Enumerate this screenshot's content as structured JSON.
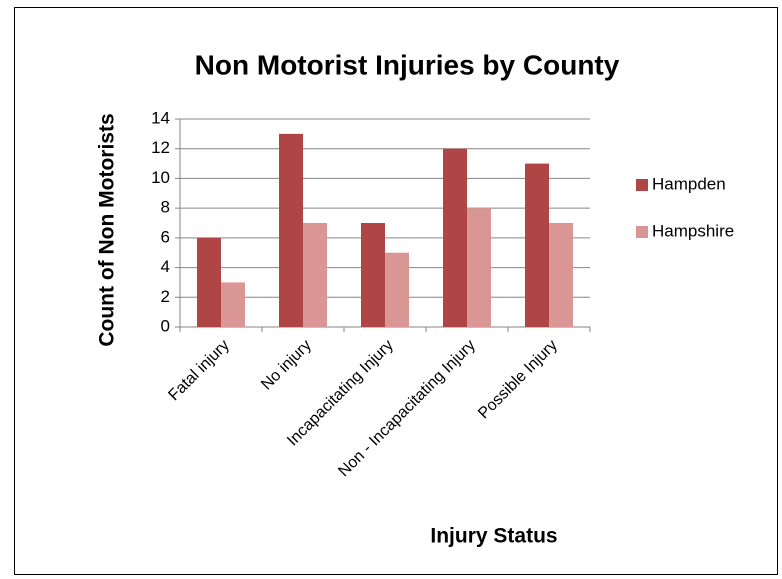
{
  "chart_data": {
    "type": "bar",
    "title": "Non Motorist Injuries by County",
    "x_label": "Injury Status",
    "y_label": "Count of Non Motorists",
    "categories": [
      "Fatal injury",
      "No injury",
      "Incapacitating Injury",
      "Non - Incapacitating Injury",
      "Possible Injury"
    ],
    "series": [
      {
        "name": "Hampden",
        "color": "#b04545",
        "values": [
          6,
          13,
          7,
          12,
          11
        ]
      },
      {
        "name": "Hampshire",
        "color": "#d99694",
        "values": [
          3,
          7,
          5,
          8,
          7
        ]
      }
    ],
    "ylim": [
      0,
      14
    ],
    "yticks": [
      0,
      2,
      4,
      6,
      8,
      10,
      12,
      14
    ],
    "grid": true,
    "legend": "right"
  }
}
